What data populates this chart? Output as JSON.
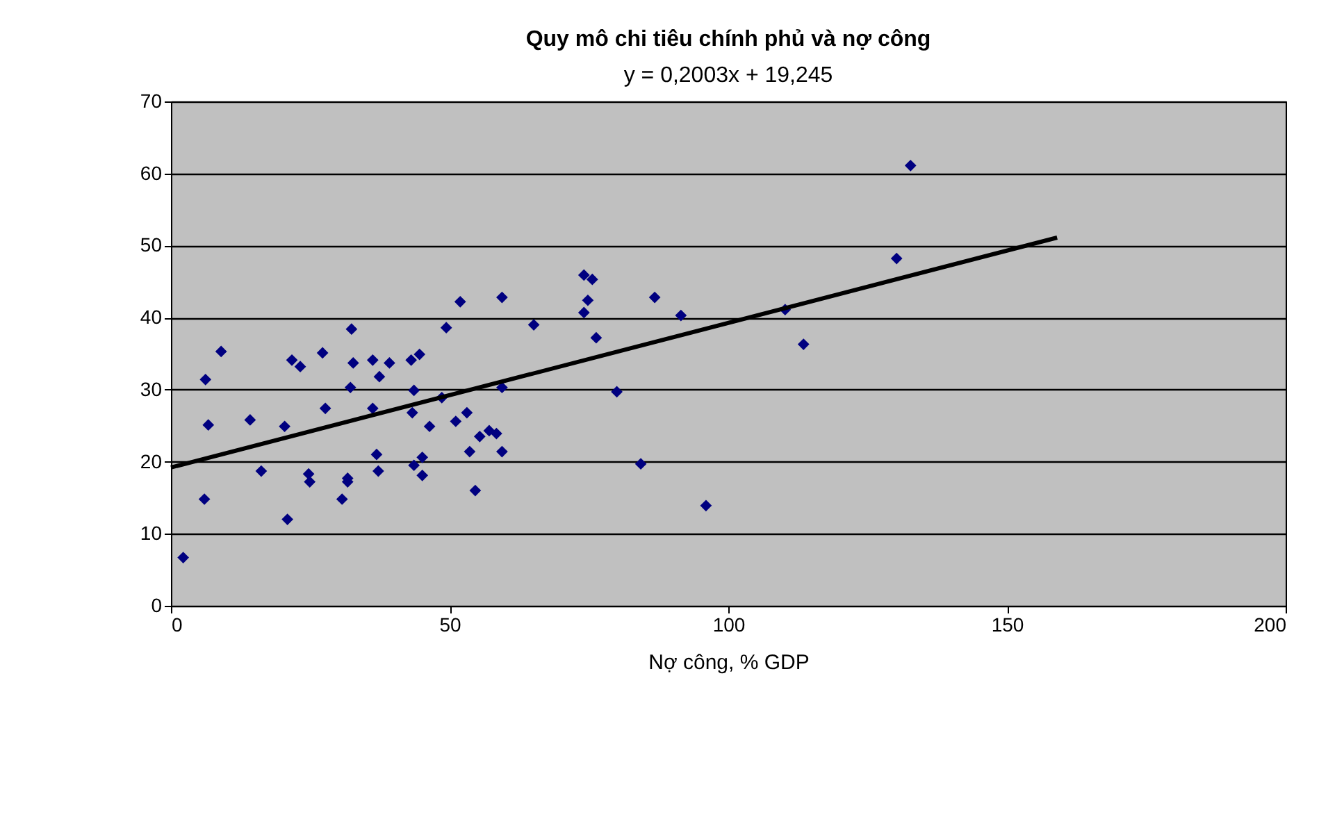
{
  "chart_data": {
    "type": "scatter",
    "title": "Quy mô chi tiêu chính phủ và nợ công",
    "xlabel": "Nợ công, % GDP",
    "annotations": [
      "y  = 0,2003x + 19,245"
    ],
    "series": [
      {
        "color": "#000080",
        "marker": "diamond",
        "x": [
          2.2,
          6,
          6.7,
          6.2,
          9,
          14.2,
          16.2,
          20.4,
          20.9,
          21.7,
          23.2,
          24.7,
          24.9,
          27.2,
          27.7,
          30.7,
          31.7,
          31.7,
          32.4,
          32.2,
          32.7,
          36.2,
          36.2,
          37.4,
          36.9,
          37.2,
          39.2,
          43.1,
          43.6,
          43.3,
          43.6,
          45.1,
          45.1,
          44.6,
          46.4,
          48.6,
          49.4,
          51.1,
          51.9,
          53.1,
          53.6,
          54.6,
          55.4,
          57.1,
          58.4,
          59.4,
          59.4,
          59.4,
          65.1,
          74.1,
          75.6,
          74.8,
          74.1,
          76.3,
          80,
          84.3,
          86.8,
          91.5,
          96,
          110.2,
          113.5,
          130.2,
          132.7
        ],
        "values": [
          6.7,
          14.8,
          25.1,
          31.4,
          35.3,
          25.8,
          18.7,
          24.9,
          12,
          34.1,
          33.2,
          18.3,
          17.2,
          35.1,
          27.4,
          14.8,
          17.7,
          17.2,
          38.4,
          30.3,
          33.7,
          34.1,
          27.4,
          31.8,
          21,
          18.7,
          33.7,
          34.1,
          29.9,
          26.8,
          19.5,
          20.6,
          18.1,
          34.9,
          24.9,
          28.9,
          38.6,
          25.6,
          42.2,
          26.8,
          21.4,
          16,
          23.5,
          24.3,
          23.9,
          21.4,
          30.3,
          42.8,
          39,
          45.9,
          45.3,
          42.4,
          40.7,
          37.2,
          29.7,
          19.7,
          42.8,
          40.3,
          13.9,
          41.1,
          36.3,
          48.2,
          61.1
        ]
      },
      {
        "type": "line",
        "color": "#000000",
        "marker": "none",
        "line_style": "solid",
        "x": [
          0,
          159
        ],
        "values": [
          19.2,
          51.1
        ]
      }
    ],
    "xlim": [
      0,
      200
    ],
    "xticks": [
      0,
      50,
      100,
      150,
      200
    ],
    "ylim": [
      0,
      70
    ],
    "yticks": [
      0,
      10,
      20,
      30,
      40,
      50,
      60,
      70
    ],
    "grid": "y"
  }
}
